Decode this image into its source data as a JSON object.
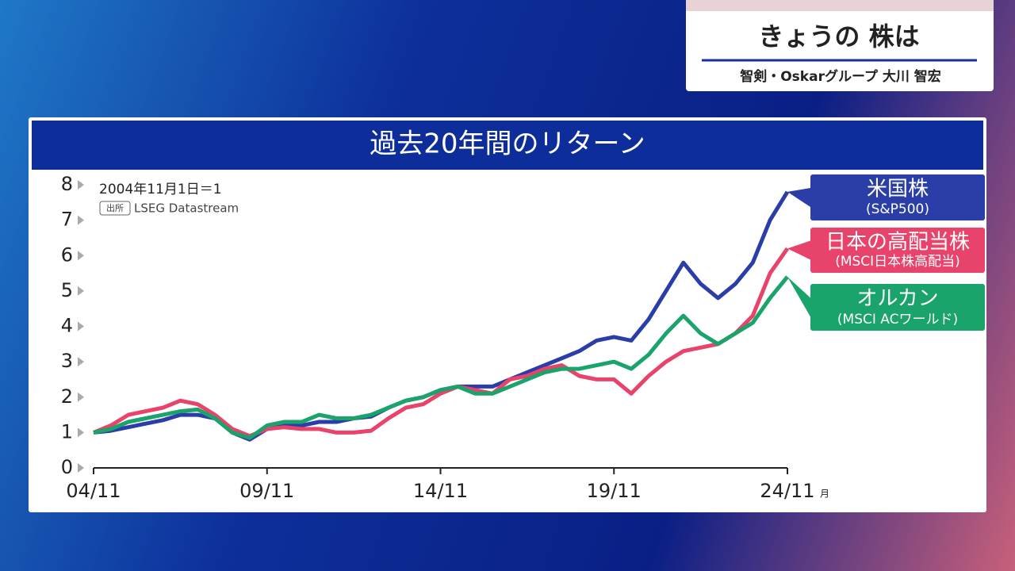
{
  "header": {
    "title": "きょうの 株は",
    "subtitle": "智剣・Oskarグループ 大川 智宏"
  },
  "chart_data": {
    "type": "line",
    "title": "過去20年間のリターン",
    "annotation": "2004年11月1日＝1",
    "source_label": "出所",
    "source": "LSEG Datastream",
    "x_unit": "月",
    "x": [
      "04/11",
      "05/05",
      "05/11",
      "06/05",
      "06/11",
      "07/05",
      "07/11",
      "08/05",
      "08/11",
      "09/05",
      "09/11",
      "10/05",
      "10/11",
      "11/05",
      "11/11",
      "12/05",
      "12/11",
      "13/05",
      "13/11",
      "14/05",
      "14/11",
      "15/05",
      "15/11",
      "16/05",
      "16/11",
      "17/05",
      "17/11",
      "18/05",
      "18/11",
      "19/05",
      "19/11",
      "20/05",
      "20/11",
      "21/05",
      "21/11",
      "22/05",
      "22/11",
      "23/05",
      "23/11",
      "24/05",
      "24/11"
    ],
    "xticks": [
      "04/11",
      "09/11",
      "14/11",
      "19/11",
      "24/11"
    ],
    "ylim": [
      0,
      8
    ],
    "yticks": [
      0,
      1,
      2,
      3,
      4,
      5,
      6,
      7,
      8
    ],
    "series": [
      {
        "name": "米国株",
        "index": "(S&P500)",
        "color": "#2b3ea8",
        "values": [
          1.0,
          1.05,
          1.15,
          1.25,
          1.35,
          1.5,
          1.5,
          1.4,
          1.0,
          0.8,
          1.1,
          1.2,
          1.2,
          1.3,
          1.3,
          1.4,
          1.45,
          1.7,
          1.9,
          2.0,
          2.2,
          2.3,
          2.3,
          2.3,
          2.5,
          2.7,
          2.9,
          3.1,
          3.3,
          3.6,
          3.7,
          3.6,
          4.2,
          5.0,
          5.8,
          5.2,
          4.8,
          5.2,
          5.8,
          7.0,
          7.8
        ]
      },
      {
        "name": "日本の高配当株",
        "index": "(MSCI日本株高配当)",
        "color": "#e8436a",
        "values": [
          1.0,
          1.2,
          1.5,
          1.6,
          1.7,
          1.9,
          1.8,
          1.5,
          1.1,
          0.9,
          1.1,
          1.15,
          1.1,
          1.1,
          1.0,
          1.0,
          1.05,
          1.4,
          1.7,
          1.8,
          2.1,
          2.3,
          2.2,
          2.1,
          2.5,
          2.6,
          2.8,
          2.9,
          2.6,
          2.5,
          2.5,
          2.1,
          2.6,
          3.0,
          3.3,
          3.4,
          3.5,
          3.8,
          4.3,
          5.5,
          6.2
        ]
      },
      {
        "name": "オルカン",
        "index": "(MSCI ACワールド)",
        "color": "#1aa36a",
        "values": [
          1.0,
          1.1,
          1.3,
          1.4,
          1.5,
          1.6,
          1.65,
          1.4,
          1.0,
          0.85,
          1.2,
          1.3,
          1.3,
          1.5,
          1.4,
          1.4,
          1.5,
          1.7,
          1.9,
          2.0,
          2.2,
          2.3,
          2.1,
          2.1,
          2.3,
          2.5,
          2.7,
          2.8,
          2.8,
          2.9,
          3.0,
          2.8,
          3.2,
          3.8,
          4.3,
          3.8,
          3.5,
          3.8,
          4.1,
          4.8,
          5.4
        ]
      }
    ]
  }
}
